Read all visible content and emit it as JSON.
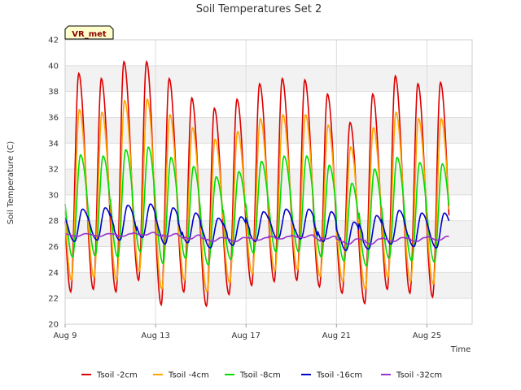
{
  "chart_data": {
    "type": "line",
    "title": "Soil Temperatures Set 2",
    "xlabel": "Time",
    "ylabel": "Soil Temperature (C)",
    "station_label": "VR_met",
    "ylim": [
      20,
      42
    ],
    "yticks": [
      20,
      22,
      24,
      26,
      28,
      30,
      32,
      34,
      36,
      38,
      40,
      42
    ],
    "xlim": [
      "2024-08-09",
      "2024-08-27"
    ],
    "xticks": [
      {
        "date": "2024-08-09",
        "label": "Aug 9"
      },
      {
        "date": "2024-08-13",
        "label": "Aug 13"
      },
      {
        "date": "2024-08-17",
        "label": "Aug 17"
      },
      {
        "date": "2024-08-21",
        "label": "Aug 21"
      },
      {
        "date": "2024-08-25",
        "label": "Aug 25"
      }
    ],
    "grid": true,
    "legend_position": "bottom",
    "series": [
      {
        "name": "Tsoil -2cm",
        "color": "#dd0000",
        "x_start": "2024-08-09",
        "daily_peaks": [
          39.4,
          39.0,
          40.3,
          40.3,
          39.0,
          37.5,
          36.7,
          37.4,
          38.6,
          39.0,
          38.9,
          37.8,
          35.6,
          37.8,
          39.2,
          38.6,
          38.7
        ],
        "daily_mins": [
          22.5,
          22.7,
          22.5,
          23.4,
          21.5,
          22.5,
          21.4,
          22.3,
          23.0,
          23.3,
          23.4,
          22.9,
          22.4,
          21.6,
          22.7,
          22.4,
          22.1
        ]
      },
      {
        "name": "Tsoil -4cm",
        "color": "#ffa500",
        "x_start": "2024-08-09",
        "daily_peaks": [
          36.6,
          36.4,
          37.3,
          37.4,
          36.2,
          35.2,
          34.3,
          34.9,
          35.9,
          36.2,
          36.2,
          35.4,
          33.7,
          35.2,
          36.4,
          35.9,
          35.9
        ],
        "daily_mins": [
          23.4,
          23.6,
          23.4,
          24.1,
          22.7,
          23.4,
          22.5,
          23.2,
          23.9,
          24.1,
          24.2,
          23.7,
          23.3,
          22.7,
          23.6,
          23.3,
          23.1
        ]
      },
      {
        "name": "Tsoil -8cm",
        "color": "#00dd00",
        "x_start": "2024-08-09",
        "daily_peaks": [
          33.1,
          33.0,
          33.5,
          33.7,
          32.9,
          32.2,
          31.4,
          31.8,
          32.6,
          33.0,
          33.0,
          32.3,
          30.9,
          32.0,
          32.9,
          32.5,
          32.4
        ],
        "daily_mins": [
          25.2,
          25.3,
          25.2,
          25.6,
          24.7,
          25.1,
          24.6,
          25.0,
          25.5,
          25.6,
          25.6,
          25.2,
          24.9,
          24.5,
          25.1,
          24.9,
          24.8
        ]
      },
      {
        "name": "Tsoil -16cm",
        "color": "#0000cc",
        "x_start": "2024-08-09",
        "daily_peaks": [
          28.9,
          29.0,
          29.2,
          29.3,
          29.0,
          28.6,
          28.2,
          28.3,
          28.7,
          28.9,
          28.9,
          28.7,
          27.9,
          28.4,
          28.8,
          28.6,
          28.6
        ],
        "daily_mins": [
          26.4,
          26.5,
          26.5,
          26.7,
          26.2,
          26.3,
          25.9,
          26.1,
          26.4,
          26.6,
          26.6,
          26.4,
          25.7,
          25.8,
          26.2,
          26.0,
          25.9
        ]
      },
      {
        "name": "Tsoil -32cm",
        "color": "#9933cc",
        "x_start": "2024-08-09",
        "daily_peaks": [
          27.0,
          27.0,
          27.0,
          27.1,
          27.0,
          26.9,
          26.7,
          26.7,
          26.7,
          26.8,
          26.9,
          26.8,
          26.6,
          26.6,
          26.7,
          26.7,
          26.8
        ],
        "daily_mins": [
          26.8,
          26.8,
          26.8,
          26.9,
          26.8,
          26.6,
          26.4,
          26.4,
          26.5,
          26.6,
          26.7,
          26.6,
          26.2,
          26.2,
          26.4,
          26.4,
          26.5
        ]
      }
    ]
  }
}
